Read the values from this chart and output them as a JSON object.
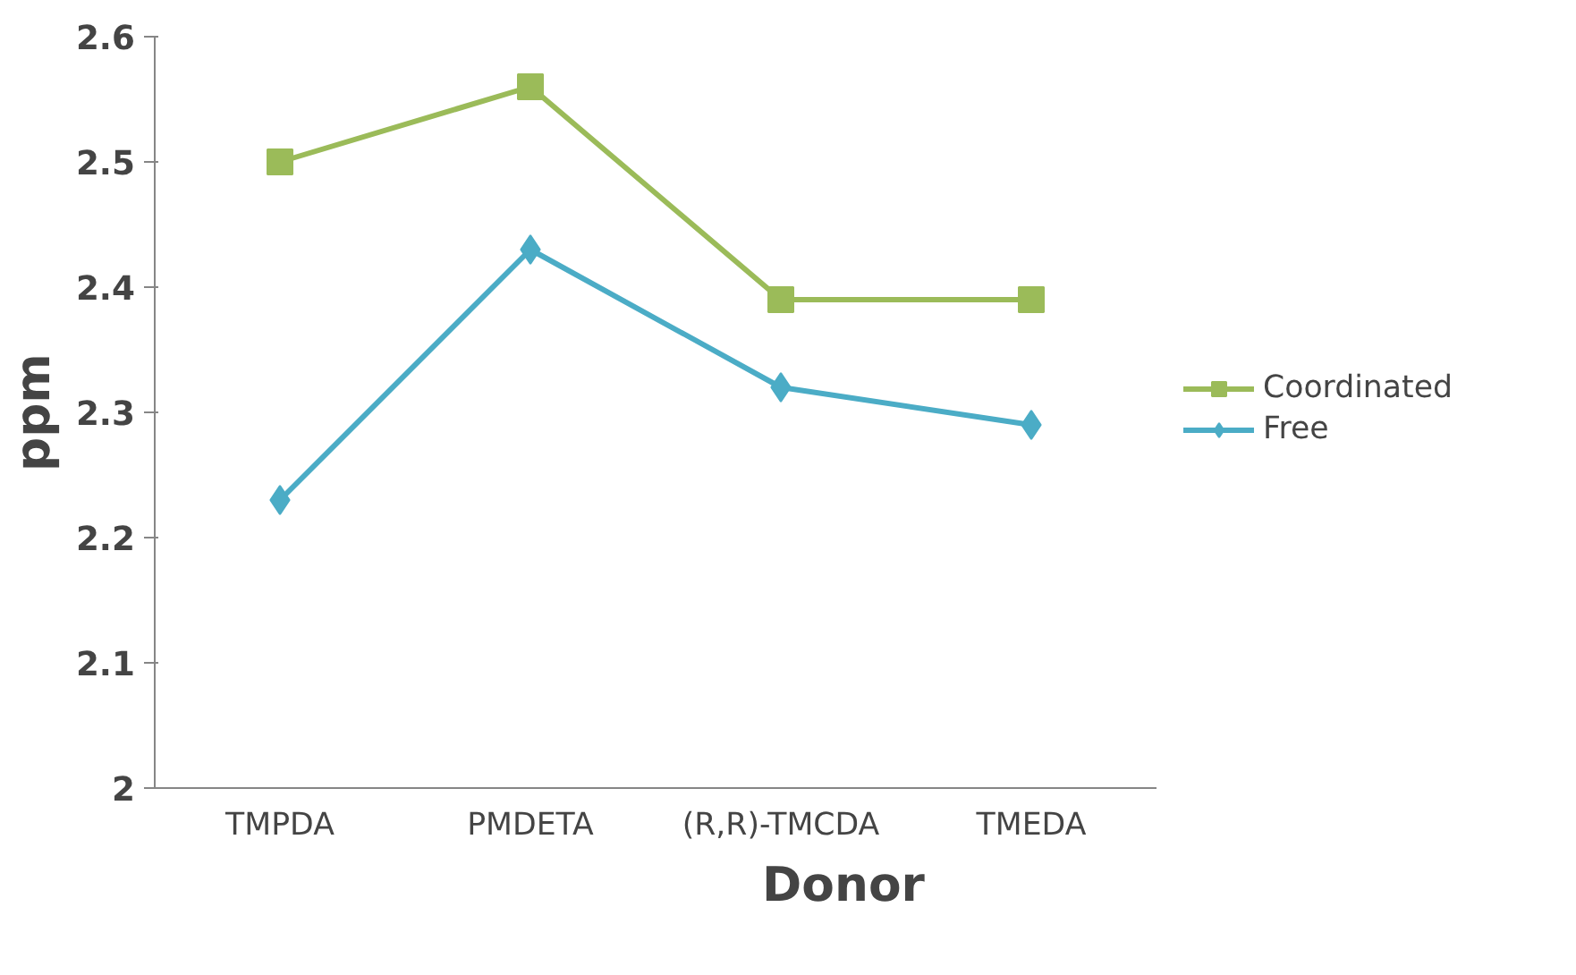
{
  "chart_data": {
    "type": "line",
    "xlabel": "Donor",
    "ylabel": "ppm",
    "categories": [
      "TMPDA",
      "PMDETA",
      "(R,R)-TMCDA",
      "TMEDA"
    ],
    "series": [
      {
        "name": "Coordinated",
        "color": "#9bbb59",
        "marker": "square",
        "values": [
          2.5,
          2.56,
          2.39,
          2.39
        ]
      },
      {
        "name": "Free",
        "color": "#4bacc6",
        "marker": "diamond",
        "values": [
          2.23,
          2.43,
          2.32,
          2.29
        ]
      }
    ],
    "ylim": [
      2,
      2.6
    ],
    "yticks": [
      {
        "value": 2,
        "label": "2"
      },
      2.1,
      2.2,
      2.3,
      2.4,
      2.5,
      2.6
    ],
    "grid": false,
    "legend": "right",
    "line_style": "solid"
  }
}
